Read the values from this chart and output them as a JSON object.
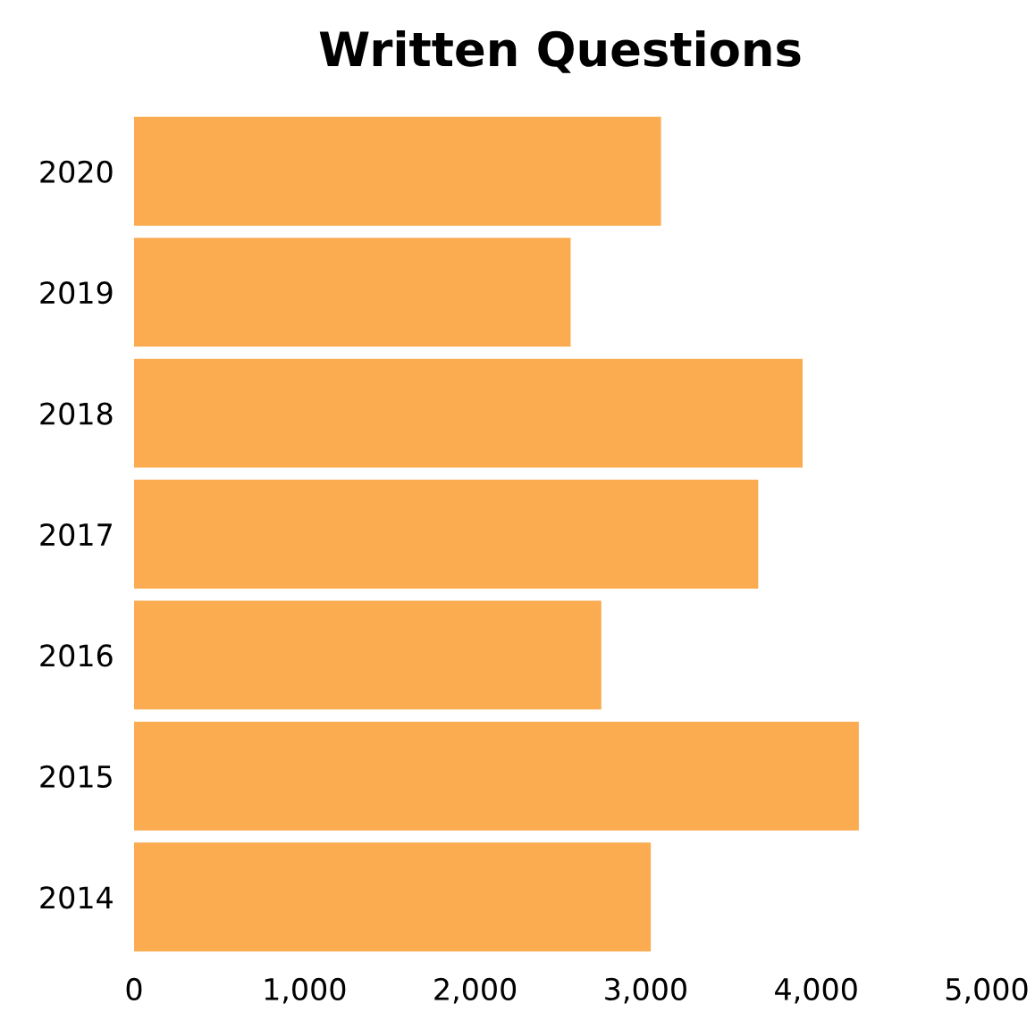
{
  "chart_data": {
    "type": "bar",
    "orientation": "horizontal",
    "title": "Written Questions",
    "categories": [
      "2020",
      "2019",
      "2018",
      "2017",
      "2016",
      "2015",
      "2014"
    ],
    "values": [
      3090,
      2560,
      3920,
      3660,
      2740,
      4250,
      3030
    ],
    "color": "#fbab50",
    "xlim": [
      0,
      5000
    ],
    "xticks": [
      {
        "value": 0,
        "label": "0"
      },
      {
        "value": 1000,
        "label": "1,000"
      },
      {
        "value": 2000,
        "label": "2,000"
      },
      {
        "value": 3000,
        "label": "3,000"
      },
      {
        "value": 4000,
        "label": "4,000"
      },
      {
        "value": 5000,
        "label": "5,000"
      }
    ],
    "grid": false
  }
}
